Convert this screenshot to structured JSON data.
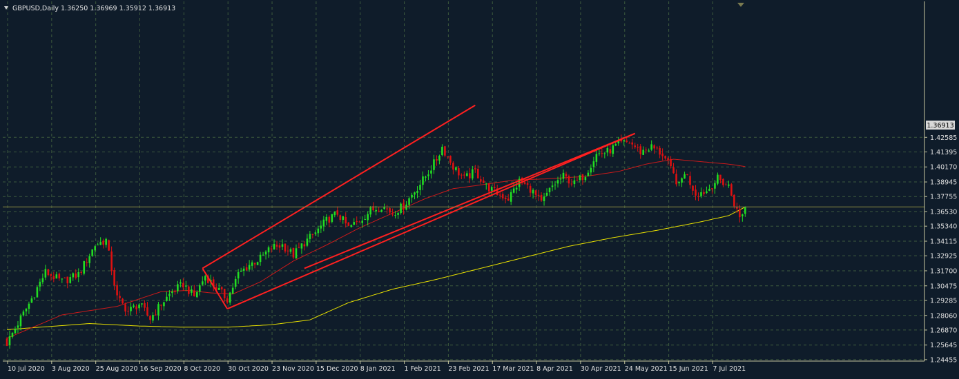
{
  "header": {
    "symbol_label": "GBPUSD,Daily",
    "ohlc": "1.36250 1.36969 1.35912 1.36913"
  },
  "colors": {
    "background": "#0f1c2a",
    "grid": "#3d5a3d",
    "axis": "#c8c8a0",
    "bull_candle": "#22dd22",
    "bear_candle": "#dd1111",
    "ma_fast": "#cc1a1a",
    "ma_slow": "#e8e000",
    "channel": "#ff2020",
    "price_line": "#8a8a40"
  },
  "chart_data": {
    "type": "candlestick",
    "symbol": "GBPUSD",
    "timeframe": "Daily",
    "last_price": "1.36913",
    "ylim": [
      1.2445,
      1.4285
    ],
    "y_ticks": [
      "1.42585",
      "1.41395",
      "1.40170",
      "1.38945",
      "1.37755",
      "1.36530",
      "1.35340",
      "1.34115",
      "1.32925",
      "1.31700",
      "1.30475",
      "1.29285",
      "1.28060",
      "1.26870",
      "1.25645",
      "1.24455"
    ],
    "x_ticks": [
      {
        "label": "10 Jul 2020",
        "i": 0
      },
      {
        "label": "3 Aug 2020",
        "i": 16
      },
      {
        "label": "25 Aug 2020",
        "i": 32
      },
      {
        "label": "16 Sep 2020",
        "i": 48
      },
      {
        "label": "8 Oct 2020",
        "i": 64
      },
      {
        "label": "30 Oct 2020",
        "i": 80
      },
      {
        "label": "23 Nov 2020",
        "i": 96
      },
      {
        "label": "15 Dec 2020",
        "i": 112
      },
      {
        "label": "8 Jan 2021",
        "i": 128
      },
      {
        "label": "1 Feb 2021",
        "i": 144
      },
      {
        "label": "23 Feb 2021",
        "i": 160
      },
      {
        "label": "17 Mar 2021",
        "i": 176
      },
      {
        "label": "8 Apr 2021",
        "i": 192
      },
      {
        "label": "30 Apr 2021",
        "i": 208
      },
      {
        "label": "24 May 2021",
        "i": 224
      },
      {
        "label": "15 Jun 2021",
        "i": 240
      },
      {
        "label": "7 Jul 2021",
        "i": 256
      }
    ],
    "close_anchors": [
      [
        0,
        1.258
      ],
      [
        8,
        1.29
      ],
      [
        14,
        1.316
      ],
      [
        20,
        1.308
      ],
      [
        26,
        1.314
      ],
      [
        32,
        1.338
      ],
      [
        36,
        1.342
      ],
      [
        40,
        1.295
      ],
      [
        44,
        1.284
      ],
      [
        48,
        1.29
      ],
      [
        52,
        1.278
      ],
      [
        56,
        1.29
      ],
      [
        60,
        1.3
      ],
      [
        64,
        1.306
      ],
      [
        68,
        1.296
      ],
      [
        72,
        1.313
      ],
      [
        76,
        1.303
      ],
      [
        80,
        1.294
      ],
      [
        84,
        1.314
      ],
      [
        88,
        1.322
      ],
      [
        92,
        1.327
      ],
      [
        96,
        1.336
      ],
      [
        100,
        1.338
      ],
      [
        104,
        1.33
      ],
      [
        108,
        1.34
      ],
      [
        112,
        1.348
      ],
      [
        116,
        1.358
      ],
      [
        120,
        1.364
      ],
      [
        124,
        1.352
      ],
      [
        128,
        1.358
      ],
      [
        132,
        1.366
      ],
      [
        136,
        1.37
      ],
      [
        140,
        1.364
      ],
      [
        144,
        1.37
      ],
      [
        148,
        1.382
      ],
      [
        152,
        1.394
      ],
      [
        156,
        1.408
      ],
      [
        158,
        1.418
      ],
      [
        162,
        1.402
      ],
      [
        166,
        1.392
      ],
      [
        170,
        1.398
      ],
      [
        174,
        1.386
      ],
      [
        178,
        1.38
      ],
      [
        182,
        1.376
      ],
      [
        186,
        1.39
      ],
      [
        190,
        1.384
      ],
      [
        194,
        1.372
      ],
      [
        198,
        1.386
      ],
      [
        202,
        1.394
      ],
      [
        206,
        1.388
      ],
      [
        210,
        1.396
      ],
      [
        214,
        1.412
      ],
      [
        218,
        1.414
      ],
      [
        222,
        1.42
      ],
      [
        226,
        1.422
      ],
      [
        230,
        1.414
      ],
      [
        234,
        1.418
      ],
      [
        238,
        1.412
      ],
      [
        240,
        1.404
      ],
      [
        244,
        1.386
      ],
      [
        246,
        1.398
      ],
      [
        250,
        1.38
      ],
      [
        254,
        1.382
      ],
      [
        258,
        1.392
      ],
      [
        262,
        1.386
      ],
      [
        264,
        1.372
      ],
      [
        266,
        1.36
      ],
      [
        268,
        1.369
      ]
    ],
    "ma_fast": [
      [
        0,
        1.262
      ],
      [
        20,
        1.281
      ],
      [
        40,
        1.288
      ],
      [
        56,
        1.3
      ],
      [
        66,
        1.301
      ],
      [
        74,
        1.299
      ],
      [
        82,
        1.298
      ],
      [
        92,
        1.308
      ],
      [
        104,
        1.325
      ],
      [
        116,
        1.338
      ],
      [
        128,
        1.352
      ],
      [
        140,
        1.364
      ],
      [
        152,
        1.376
      ],
      [
        162,
        1.384
      ],
      [
        172,
        1.387
      ],
      [
        184,
        1.391
      ],
      [
        196,
        1.392
      ],
      [
        210,
        1.394
      ],
      [
        222,
        1.398
      ],
      [
        232,
        1.404
      ],
      [
        242,
        1.408
      ],
      [
        252,
        1.406
      ],
      [
        262,
        1.404
      ],
      [
        268,
        1.402
      ]
    ],
    "ma_slow": [
      [
        0,
        1.269
      ],
      [
        30,
        1.274
      ],
      [
        48,
        1.272
      ],
      [
        64,
        1.271
      ],
      [
        80,
        1.271
      ],
      [
        96,
        1.273
      ],
      [
        110,
        1.277
      ],
      [
        124,
        1.291
      ],
      [
        140,
        1.302
      ],
      [
        156,
        1.31
      ],
      [
        172,
        1.319
      ],
      [
        188,
        1.328
      ],
      [
        204,
        1.337
      ],
      [
        220,
        1.344
      ],
      [
        236,
        1.35
      ],
      [
        252,
        1.357
      ],
      [
        262,
        1.362
      ],
      [
        268,
        1.369
      ]
    ],
    "channel_lines": [
      {
        "from": [
          71,
          1.319
        ],
        "to": [
          170,
          1.452
        ]
      },
      {
        "from": [
          80,
          1.286
        ],
        "to": [
          228,
          1.429
        ]
      },
      {
        "from": [
          108,
          1.319
        ],
        "to": [
          228,
          1.429
        ]
      },
      {
        "from": [
          71,
          1.319
        ],
        "to": [
          80,
          1.286
        ]
      }
    ]
  }
}
